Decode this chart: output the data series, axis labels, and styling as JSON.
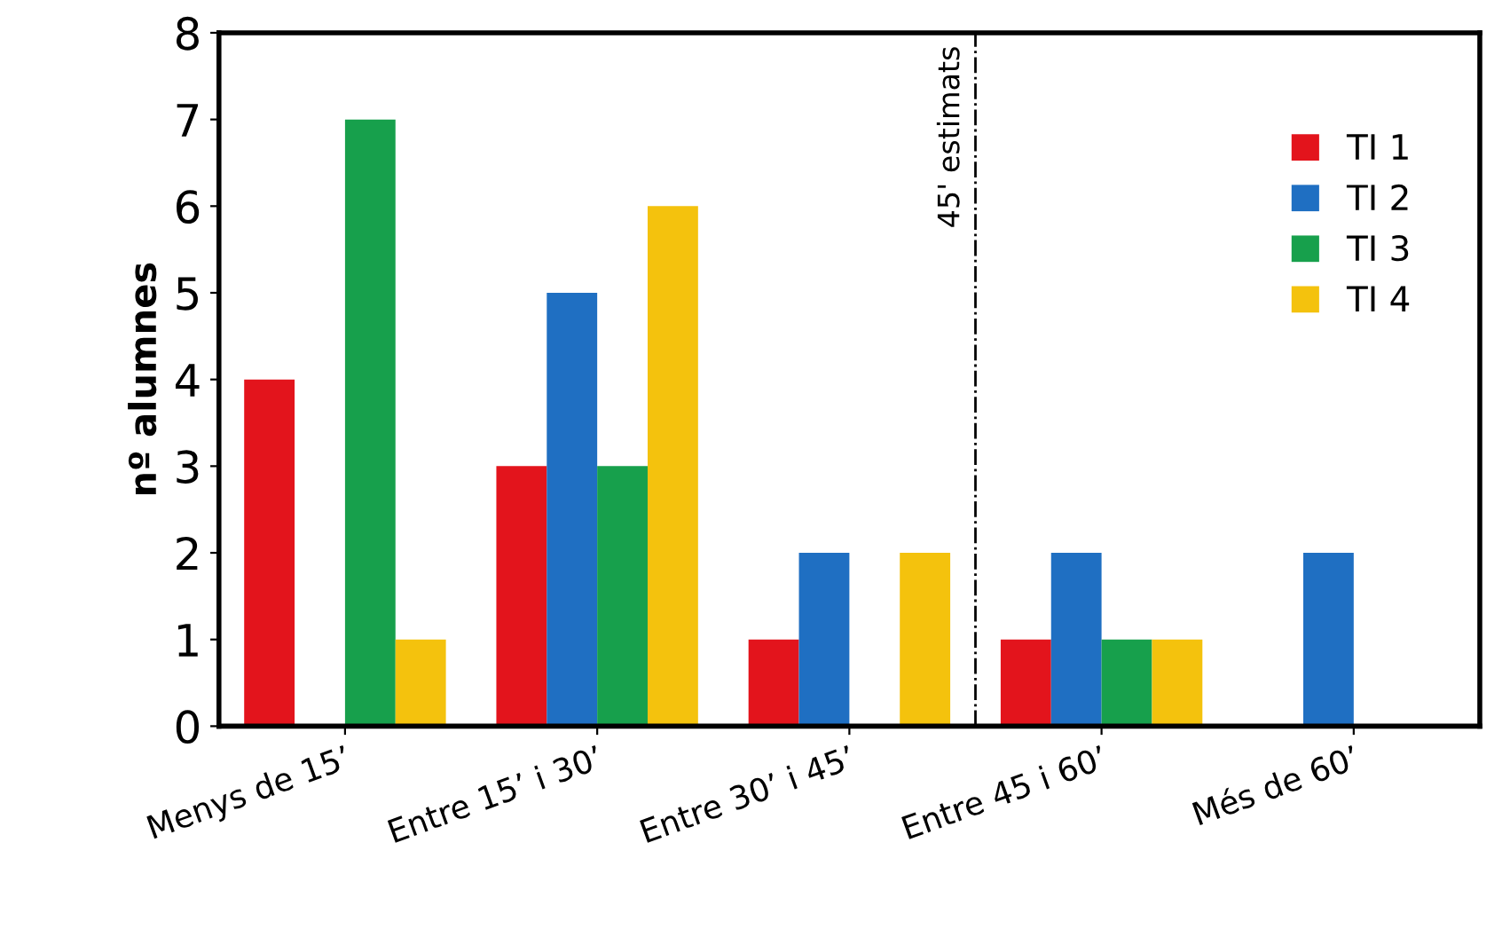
{
  "chart_data": {
    "type": "bar",
    "ylabel": "nº alumnes",
    "categories": [
      "Menys de 15’",
      "Entre 15’ i 30’",
      "Entre 30’ i 45’",
      "Entre 45 i 60’",
      "Més de 60’"
    ],
    "series": [
      {
        "name": "TI 1",
        "color": "#e3141c",
        "values": [
          4,
          3,
          1,
          1,
          0
        ]
      },
      {
        "name": "TI 2",
        "color": "#1f6fc2",
        "values": [
          0,
          5,
          2,
          2,
          2
        ]
      },
      {
        "name": "TI 3",
        "color": "#17a04c",
        "values": [
          7,
          3,
          0,
          1,
          0
        ]
      },
      {
        "name": "TI 4",
        "color": "#f4c20d",
        "values": [
          1,
          6,
          2,
          1,
          0
        ]
      }
    ],
    "ylim": [
      0,
      8
    ],
    "yticks": [
      0,
      1,
      2,
      3,
      4,
      5,
      6,
      7,
      8
    ],
    "annotations": [
      "45' estimats"
    ],
    "legend": "top right",
    "grid": false
  }
}
